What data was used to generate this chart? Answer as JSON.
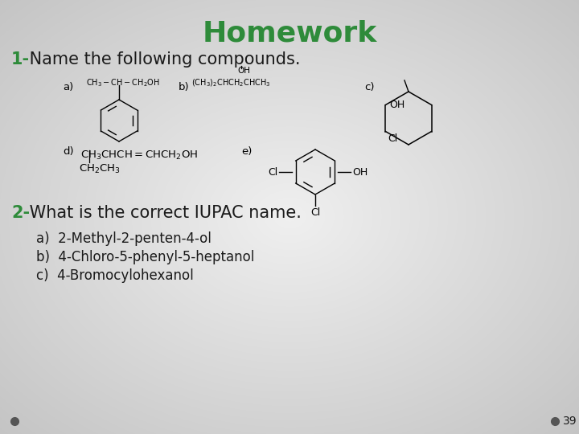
{
  "title": "Homework",
  "title_color": "#2e8b3a",
  "title_fontsize": 26,
  "bg_color_left": "#c8c8c8",
  "bg_color_right": "#e8e8e8",
  "bg_color_center": "#f0f0f0",
  "question1_prefix": "1-",
  "question1_rest": " Name the following compounds.",
  "question2_prefix": "2-",
  "question2_rest": " What is the correct IUPAC name.",
  "green_color": "#2e8b3a",
  "answers": [
    "a)  2-Methyl-2-penten-4-ol",
    "b)  4-Chloro-5-phenyl-5-heptanol",
    "c)  4-Bromocylohexanol"
  ],
  "text_color": "#1a1a1a",
  "footer_dot_color": "#555555",
  "page_number": "39"
}
